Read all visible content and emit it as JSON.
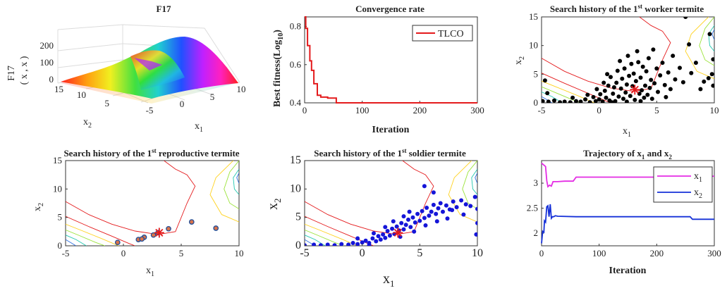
{
  "figure": {
    "panel1": {
      "title": "F17",
      "zlabel": "F17",
      "zlabel_args": "( x , x )",
      "xlabel": "x",
      "ylabel": "x"
    },
    "panel2": {
      "title": "Convergence rate",
      "ylabel": "Best fitness(Log",
      "xlabel": "Iteration",
      "legend": "TLCO"
    },
    "panel3": {
      "title_pre": "Search history of the 1",
      "title_sup": "st",
      "title_post": " worker termite",
      "xlabel": "x",
      "ylabel": "x"
    },
    "panel4": {
      "title_pre": "Search history of the  1",
      "title_sup": "st",
      "title_post": " reproductive termite",
      "xlabel": "x",
      "ylabel": "x"
    },
    "panel5": {
      "title_pre": "Search history of the 1",
      "title_sup": "st",
      "title_post": " soldier termite",
      "xlabel": "x",
      "ylabel": "x"
    },
    "panel6": {
      "title": "Trajectory of x and x",
      "legend": [
        "x",
        "x"
      ],
      "xlabel": "Iteration"
    }
  },
  "colors": {
    "tlco_line": "#e41a1c",
    "worker_points": "#000000",
    "repro_points_fill": "#d9734a",
    "repro_points_edge": "#1f4e9a",
    "soldier_points": "#1515d8",
    "best_star": "#e41a1c",
    "x1_line": "#e42ce4",
    "x2_line": "#1530d8"
  },
  "chart_data": [
    {
      "type": "surface",
      "title": "F17",
      "x_ticks": [
        "-5",
        "0",
        "5",
        "10"
      ],
      "y_ticks": [
        "15",
        "10",
        "5"
      ],
      "z_ticks": [
        "0",
        "100",
        "200"
      ],
      "xlim": [
        -5,
        10
      ],
      "ylim": [
        0,
        15
      ],
      "zlim": [
        0,
        300
      ]
    },
    {
      "type": "line",
      "title": "Convergence rate",
      "xlabel": "Iteration",
      "ylabel": "Best fitness(Log10)",
      "xlim": [
        0,
        300
      ],
      "ylim": [
        0.4,
        0.85
      ],
      "x_ticks": [
        0,
        100,
        200,
        300
      ],
      "y_ticks": [
        0.4,
        0.6,
        0.8
      ],
      "series": [
        {
          "name": "TLCO",
          "x": [
            0,
            2,
            2,
            5,
            5,
            9,
            9,
            12,
            12,
            16,
            16,
            22,
            22,
            28,
            28,
            40,
            40,
            55,
            55,
            300
          ],
          "y": [
            0.85,
            0.85,
            0.79,
            0.79,
            0.7,
            0.7,
            0.62,
            0.62,
            0.57,
            0.57,
            0.5,
            0.5,
            0.44,
            0.44,
            0.43,
            0.43,
            0.425,
            0.425,
            0.4,
            0.4
          ]
        }
      ]
    },
    {
      "type": "scatter",
      "title": "Search history of the 1st worker termite",
      "xlim": [
        -5,
        10
      ],
      "ylim": [
        0,
        15
      ],
      "x_ticks": [
        -5,
        0,
        5,
        10
      ],
      "y_ticks": [
        0,
        5,
        10,
        15
      ],
      "best": [
        3.1,
        2.3
      ],
      "points": [
        [
          -4.9,
          0.3
        ],
        [
          -4.7,
          3.9
        ],
        [
          -4.5,
          1.7
        ],
        [
          -4.4,
          0.2
        ],
        [
          -3.9,
          0.4
        ],
        [
          -3.4,
          0.1
        ],
        [
          -3.0,
          0.2
        ],
        [
          -2.5,
          0.1
        ],
        [
          -2.0,
          0.3
        ],
        [
          -1.6,
          0.2
        ],
        [
          -1.2,
          0.6
        ],
        [
          -0.8,
          0.1
        ],
        [
          -0.5,
          1.0
        ],
        [
          -0.3,
          0.3
        ],
        [
          0.0,
          0.6
        ],
        [
          0.1,
          1.5
        ],
        [
          0.3,
          0.2
        ],
        [
          0.5,
          2.1
        ],
        [
          0.6,
          0.9
        ],
        [
          0.8,
          3.0
        ],
        [
          0.9,
          0.4
        ],
        [
          1.0,
          4.5
        ],
        [
          1.2,
          1.6
        ],
        [
          1.3,
          2.7
        ],
        [
          1.4,
          0.3
        ],
        [
          1.5,
          3.5
        ],
        [
          1.6,
          5.6
        ],
        [
          1.7,
          1.1
        ],
        [
          1.8,
          7.3
        ],
        [
          1.9,
          2.5
        ],
        [
          2.0,
          4.2
        ],
        [
          2.1,
          0.7
        ],
        [
          2.2,
          6.0
        ],
        [
          2.3,
          1.8
        ],
        [
          2.4,
          3.2
        ],
        [
          2.5,
          8.2
        ],
        [
          2.6,
          4.7
        ],
        [
          2.7,
          1.2
        ],
        [
          2.8,
          6.8
        ],
        [
          2.9,
          2.9
        ],
        [
          3.0,
          5.1
        ],
        [
          3.1,
          0.5
        ],
        [
          3.2,
          3.8
        ],
        [
          3.3,
          9.0
        ],
        [
          3.4,
          7.1
        ],
        [
          3.5,
          1.6
        ],
        [
          3.6,
          4.4
        ],
        [
          3.7,
          2.2
        ],
        [
          3.8,
          6.3
        ],
        [
          3.9,
          0.9
        ],
        [
          4.0,
          3.0
        ],
        [
          4.1,
          5.5
        ],
        [
          4.2,
          1.4
        ],
        [
          4.3,
          7.8
        ],
        [
          4.4,
          2.6
        ],
        [
          4.5,
          4.0
        ],
        [
          4.7,
          9.3
        ],
        [
          4.8,
          3.4
        ],
        [
          5.0,
          6.0
        ],
        [
          5.1,
          1.9
        ],
        [
          5.3,
          4.8
        ],
        [
          5.5,
          7.0
        ],
        [
          5.7,
          3.1
        ],
        [
          6.0,
          5.3
        ],
        [
          6.2,
          2.4
        ],
        [
          6.4,
          8.2
        ],
        [
          6.6,
          4.1
        ],
        [
          7.0,
          6.1
        ],
        [
          7.3,
          3.6
        ],
        [
          7.8,
          10.2
        ],
        [
          8.0,
          5.2
        ],
        [
          8.4,
          7.0
        ],
        [
          8.8,
          2.4
        ],
        [
          9.1,
          3.7
        ],
        [
          9.5,
          4.3
        ],
        [
          9.9,
          3.0
        ],
        [
          9.8,
          5.0
        ],
        [
          9.6,
          12.0
        ],
        [
          7.5,
          15.0
        ],
        [
          9.9,
          7.6
        ],
        [
          0.4,
          3.5
        ],
        [
          -1.0,
          1.4
        ],
        [
          -2.3,
          0.9
        ],
        [
          1.1,
          0.1
        ],
        [
          2.4,
          0.2
        ],
        [
          3.6,
          0.3
        ],
        [
          -0.2,
          2.4
        ],
        [
          0.7,
          5.0
        ],
        [
          4.6,
          0.7
        ],
        [
          5.8,
          1.0
        ]
      ]
    },
    {
      "type": "scatter",
      "title": "Search history of the  1st reproductive termite",
      "xlim": [
        -5,
        10
      ],
      "ylim": [
        0,
        15
      ],
      "x_ticks": [
        -5,
        0,
        5,
        10
      ],
      "y_ticks": [
        0,
        5,
        10,
        15
      ],
      "best": [
        3.1,
        2.3
      ],
      "points": [
        [
          -0.5,
          0.6
        ],
        [
          1.3,
          1.1
        ],
        [
          1.8,
          1.5
        ],
        [
          1.6,
          1.2
        ],
        [
          2.6,
          1.9
        ],
        [
          3.0,
          2.3
        ],
        [
          3.9,
          3.0
        ],
        [
          5.9,
          4.2
        ],
        [
          8.0,
          3.1
        ]
      ]
    },
    {
      "type": "scatter",
      "title": "Search history of the 1st soldier termite",
      "xlim": [
        -5,
        10
      ],
      "ylim": [
        0,
        15
      ],
      "x_ticks": [
        -5,
        0,
        5,
        10
      ],
      "y_ticks": [
        0,
        5,
        10,
        15
      ],
      "best": [
        3.1,
        2.3
      ],
      "points": [
        [
          -5.0,
          0.1
        ],
        [
          -4.2,
          0.2
        ],
        [
          -3.6,
          0.1
        ],
        [
          -3.0,
          0.2
        ],
        [
          -2.4,
          0.1
        ],
        [
          -1.8,
          0.3
        ],
        [
          -1.2,
          0.2
        ],
        [
          -0.8,
          0.5
        ],
        [
          -0.4,
          0.3
        ],
        [
          0.0,
          0.6
        ],
        [
          0.3,
          0.9
        ],
        [
          0.6,
          0.5
        ],
        [
          0.9,
          1.3
        ],
        [
          1.2,
          0.8
        ],
        [
          1.4,
          1.7
        ],
        [
          1.6,
          1.1
        ],
        [
          1.8,
          2.0
        ],
        [
          2.0,
          1.4
        ],
        [
          2.2,
          2.6
        ],
        [
          2.4,
          1.8
        ],
        [
          2.6,
          3.0
        ],
        [
          2.8,
          2.1
        ],
        [
          3.0,
          3.4
        ],
        [
          3.2,
          2.7
        ],
        [
          3.4,
          4.0
        ],
        [
          3.6,
          2.9
        ],
        [
          3.8,
          3.7
        ],
        [
          4.0,
          4.6
        ],
        [
          4.2,
          3.3
        ],
        [
          4.4,
          5.0
        ],
        [
          4.6,
          4.1
        ],
        [
          4.8,
          5.6
        ],
        [
          5.0,
          4.4
        ],
        [
          5.2,
          6.1
        ],
        [
          5.4,
          4.9
        ],
        [
          5.6,
          6.7
        ],
        [
          5.8,
          5.3
        ],
        [
          6.0,
          6.0
        ],
        [
          6.2,
          7.2
        ],
        [
          6.4,
          5.6
        ],
        [
          6.6,
          6.6
        ],
        [
          6.8,
          7.5
        ],
        [
          7.0,
          6.0
        ],
        [
          7.3,
          7.1
        ],
        [
          7.6,
          6.4
        ],
        [
          7.9,
          7.8
        ],
        [
          8.2,
          6.8
        ],
        [
          8.6,
          8.0
        ],
        [
          9.0,
          7.3
        ],
        [
          9.4,
          7.0
        ],
        [
          9.8,
          8.6
        ],
        [
          10.0,
          6.5
        ],
        [
          10.0,
          4.0
        ],
        [
          9.9,
          2.0
        ],
        [
          5.4,
          10.5
        ],
        [
          6.2,
          9.4
        ],
        [
          7.8,
          6.3
        ],
        [
          8.8,
          5.5
        ],
        [
          3.3,
          1.6
        ],
        [
          2.0,
          3.3
        ],
        [
          4.5,
          2.5
        ],
        [
          1.0,
          2.2
        ],
        [
          0.6,
          0.1
        ],
        [
          -0.4,
          1.3
        ],
        [
          6.5,
          4.3
        ],
        [
          5.5,
          3.6
        ],
        [
          4.1,
          6.0
        ],
        [
          3.6,
          5.2
        ],
        [
          7.4,
          4.8
        ],
        [
          2.7,
          4.3
        ]
      ]
    },
    {
      "type": "line",
      "title": "Trajectory of x1 and x2",
      "xlabel": "Iteration",
      "xlim": [
        0,
        300
      ],
      "ylim": [
        1.75,
        3.45
      ],
      "x_ticks": [
        0,
        100,
        200,
        300
      ],
      "y_ticks": [
        2,
        2.5,
        3
      ],
      "series": [
        {
          "name": "x1",
          "x": [
            0,
            3,
            5,
            7,
            9,
            11,
            14,
            17,
            20,
            24,
            28,
            40,
            55,
            60,
            100,
            200,
            260,
            300
          ],
          "y": [
            3.4,
            3.37,
            3.35,
            3.33,
            3.05,
            2.93,
            2.96,
            2.94,
            3.03,
            3.03,
            3.03,
            3.04,
            3.04,
            3.12,
            3.12,
            3.12,
            3.12,
            3.14
          ]
        },
        {
          "name": "x2",
          "x": [
            0,
            2,
            4,
            5,
            7,
            9,
            11,
            13,
            15,
            17,
            19,
            21,
            24,
            28,
            60,
            100,
            200,
            258,
            262,
            300
          ],
          "y": [
            1.8,
            2.04,
            2.02,
            2.25,
            2.22,
            2.53,
            2.55,
            2.33,
            2.58,
            2.3,
            2.33,
            2.33,
            2.35,
            2.34,
            2.33,
            2.33,
            2.33,
            2.33,
            2.28,
            2.28
          ]
        }
      ]
    }
  ]
}
